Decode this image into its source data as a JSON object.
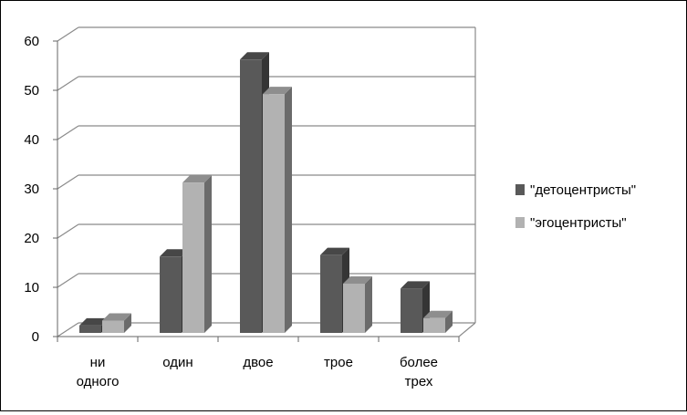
{
  "chart_data": {
    "type": "bar",
    "title": "",
    "xlabel": "",
    "ylabel": "",
    "ylim": [
      0,
      60
    ],
    "yticks": [
      0,
      10,
      20,
      30,
      40,
      50,
      60
    ],
    "categories": [
      [
        "ни",
        "одного"
      ],
      [
        "один"
      ],
      [
        "двое"
      ],
      [
        "трое"
      ],
      [
        "более",
        "трех"
      ]
    ],
    "series": [
      {
        "name": "\"детоцентристы\"",
        "values": [
          1.5,
          15.5,
          55.5,
          15.8,
          9
        ],
        "color": "#595959"
      },
      {
        "name": "\"эгоцентристы\"",
        "values": [
          2.5,
          30.5,
          48.5,
          10,
          3
        ],
        "color": "#b2b2b2"
      }
    ],
    "grid": true,
    "style": "3d-clustered-column",
    "legend_position": "right"
  }
}
